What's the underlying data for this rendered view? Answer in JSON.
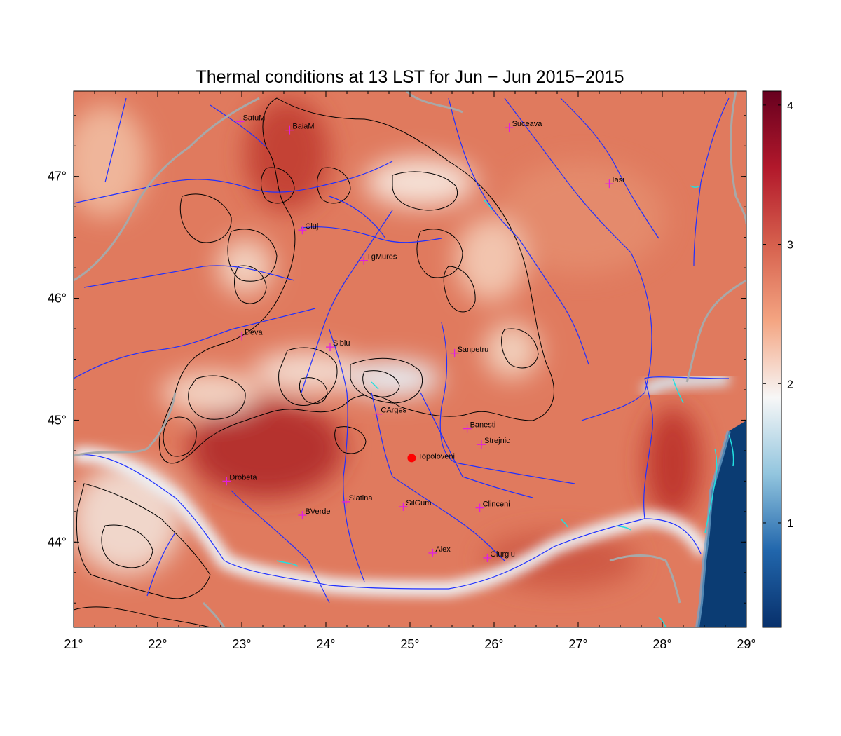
{
  "title": "Thermal conditions at 13 LST for Jun − Jun  2015−2015",
  "map": {
    "lon_range": [
      21,
      29
    ],
    "lat_range": [
      43.3,
      47.7
    ],
    "lon_ticks": [
      "21°",
      "22°",
      "23°",
      "24°",
      "25°",
      "26°",
      "27°",
      "28°",
      "29°"
    ],
    "lat_ticks": [
      "44°",
      "45°",
      "46°",
      "47°"
    ],
    "lon_tick_values": [
      21,
      22,
      23,
      24,
      25,
      26,
      27,
      28,
      29
    ],
    "lat_tick_values": [
      44,
      45,
      46,
      47
    ]
  },
  "colorbar": {
    "range": [
      0.25,
      4.1
    ],
    "ticks": [
      "1",
      "2",
      "3",
      "4"
    ],
    "tick_values": [
      1,
      2,
      3,
      4
    ],
    "colors": [
      "#08306b",
      "#2166ac",
      "#92c5de",
      "#f7f7f7",
      "#f4a582",
      "#d6604d",
      "#b2182b",
      "#67001f"
    ]
  },
  "colors": {
    "rivers": "#2030ff",
    "borders": "#a0a0a0",
    "contours": "#000000",
    "lakes": "#22e0e0",
    "station_marker": "#e020e0",
    "highlight_station": "#ff0000",
    "sea": "#0b3c73"
  },
  "stations": [
    {
      "name": "SatuM",
      "lon": 22.98,
      "lat": 47.45
    },
    {
      "name": "BaiaM",
      "lon": 23.57,
      "lat": 47.38
    },
    {
      "name": "Suceava",
      "lon": 26.18,
      "lat": 47.4
    },
    {
      "name": "Iasi",
      "lon": 27.37,
      "lat": 46.94
    },
    {
      "name": "Cluj",
      "lon": 23.72,
      "lat": 46.56
    },
    {
      "name": "TgMures",
      "lon": 24.45,
      "lat": 46.31
    },
    {
      "name": "Deva",
      "lon": 23.0,
      "lat": 45.69
    },
    {
      "name": "Sibiu",
      "lon": 24.05,
      "lat": 45.6
    },
    {
      "name": "Sanpetru",
      "lon": 25.53,
      "lat": 45.55
    },
    {
      "name": "CArges",
      "lon": 24.62,
      "lat": 45.05
    },
    {
      "name": "Banesti",
      "lon": 25.68,
      "lat": 44.93
    },
    {
      "name": "Strejnic",
      "lon": 25.85,
      "lat": 44.8
    },
    {
      "name": "Drobeta",
      "lon": 22.82,
      "lat": 44.5
    },
    {
      "name": "Slatina",
      "lon": 24.24,
      "lat": 44.33
    },
    {
      "name": "SilGum",
      "lon": 24.92,
      "lat": 44.29
    },
    {
      "name": "Clinceni",
      "lon": 25.83,
      "lat": 44.28
    },
    {
      "name": "BVerde",
      "lon": 23.72,
      "lat": 44.22
    },
    {
      "name": "Alex",
      "lon": 25.27,
      "lat": 43.91
    },
    {
      "name": "Giurgiu",
      "lon": 25.92,
      "lat": 43.87
    }
  ],
  "highlight_station": {
    "name": "Topoloveni",
    "lon": 25.02,
    "lat": 44.69
  }
}
